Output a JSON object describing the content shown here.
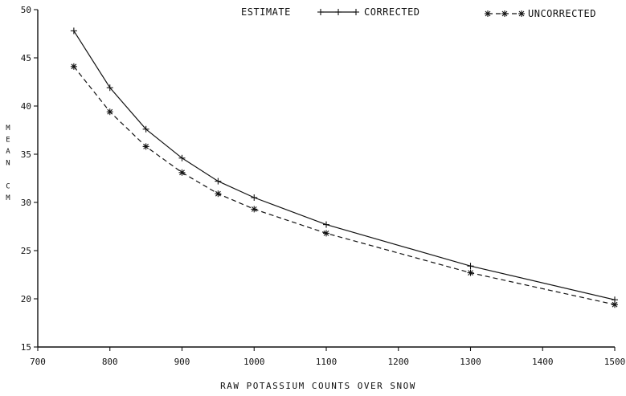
{
  "chart_data": {
    "type": "line",
    "title": "",
    "xlabel": "RAW POTASSIUM COUNTS OVER SNOW",
    "ylabel": [
      "M",
      "E",
      "A",
      "N",
      "",
      "C",
      "M"
    ],
    "xlim": [
      700,
      1500
    ],
    "ylim": [
      15,
      50
    ],
    "xticks": [
      700,
      800,
      900,
      1000,
      1100,
      1200,
      1300,
      1400,
      1500
    ],
    "yticks": [
      15,
      20,
      25,
      30,
      35,
      40,
      45,
      50
    ],
    "grid": false,
    "legend": {
      "title": "ESTIMATE",
      "placement": "top"
    },
    "series": [
      {
        "name": "CORRECTED",
        "line": "solid",
        "marker": "plus",
        "x": [
          750,
          800,
          850,
          900,
          950,
          1000,
          1100,
          1300,
          1500
        ],
        "y": [
          47.8,
          41.9,
          37.6,
          34.6,
          32.2,
          30.5,
          27.7,
          23.4,
          19.9
        ]
      },
      {
        "name": "UNCORRECTED",
        "line": "dashed",
        "marker": "asterisk",
        "x": [
          750,
          800,
          850,
          900,
          950,
          1000,
          1100,
          1300,
          1500
        ],
        "y": [
          44.1,
          39.4,
          35.8,
          33.1,
          30.9,
          29.3,
          26.8,
          22.7,
          19.4
        ]
      }
    ]
  }
}
